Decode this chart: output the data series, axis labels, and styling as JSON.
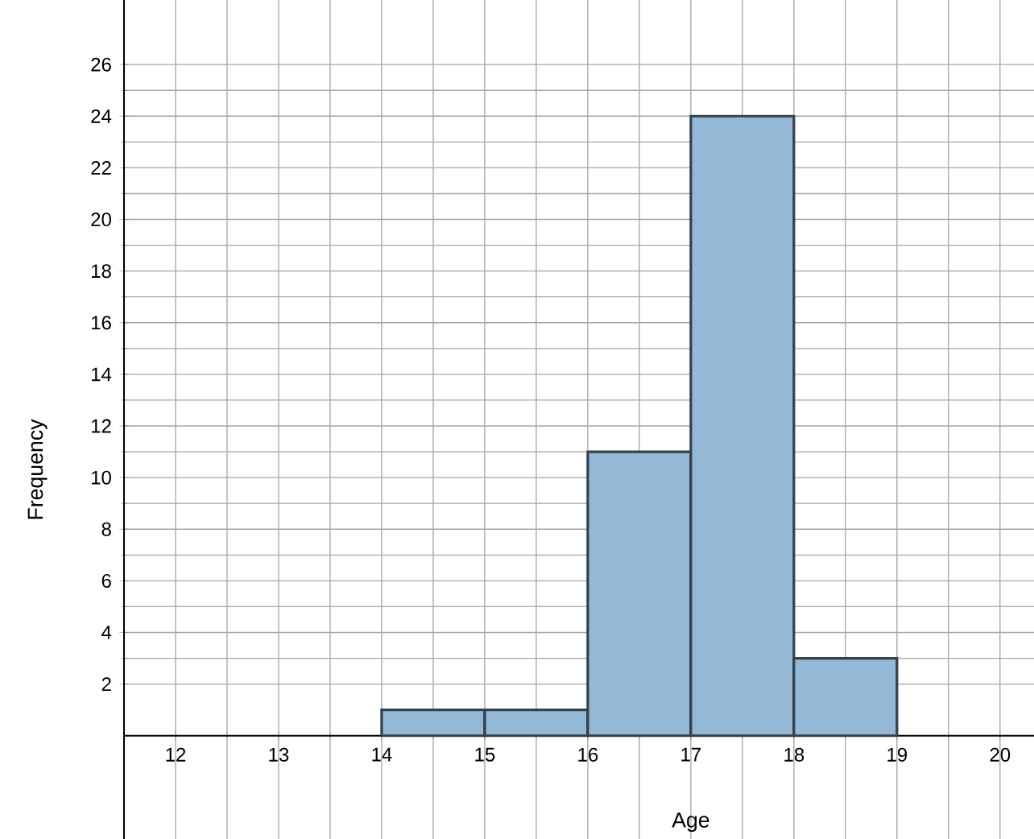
{
  "chart_data": {
    "type": "histogram",
    "xlabel": "Age",
    "ylabel": "Frequency",
    "bins": [
      14,
      15,
      16,
      17,
      18,
      19
    ],
    "values": [
      1,
      1,
      11,
      24,
      3
    ],
    "color": "#94b8d6",
    "xlim": [
      11.5,
      20.33
    ],
    "ylim": [
      -4,
      28.5
    ],
    "xticks": [
      12,
      13,
      14,
      15,
      16,
      17,
      18,
      19,
      20
    ],
    "yticks": [
      2,
      4,
      6,
      8,
      10,
      12,
      14,
      16,
      18,
      20,
      22,
      24,
      26
    ],
    "grid": true
  }
}
